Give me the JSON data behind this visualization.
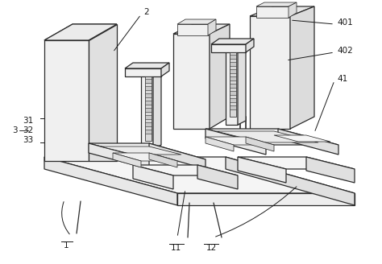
{
  "bg_color": "#ffffff",
  "line_color": "#2a2a2a",
  "label_color": "#1a1a1a",
  "figsize": [
    4.74,
    3.28
  ],
  "dpi": 100,
  "lw_main": 0.9,
  "lw_thin": 0.55,
  "lw_label": 0.7,
  "face_main": "#f8f8f8",
  "face_side": "#e8e8e8",
  "face_dark": "#d0d0d0",
  "face_white": "#ffffff"
}
